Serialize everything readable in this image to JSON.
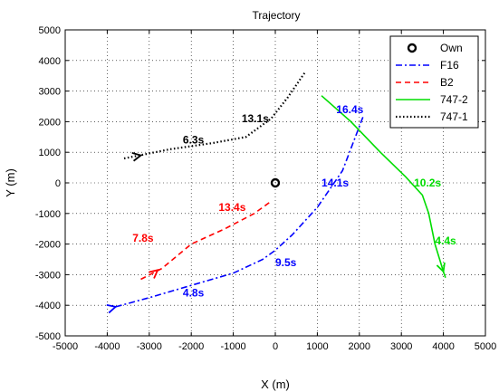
{
  "chart_data": {
    "type": "line",
    "title": "Trajectory",
    "xlabel": "X (m)",
    "ylabel": "Y (m)",
    "xlim": [
      -5000,
      5000
    ],
    "ylim": [
      -5000,
      5000
    ],
    "xticks": [
      -5000,
      -4000,
      -3000,
      -2000,
      -1000,
      0,
      1000,
      2000,
      3000,
      4000,
      5000
    ],
    "yticks": [
      -5000,
      -4000,
      -3000,
      -2000,
      -1000,
      0,
      1000,
      2000,
      3000,
      4000,
      5000
    ],
    "grid": true,
    "legend_position": "top-right",
    "own": {
      "name": "Own",
      "x": 0,
      "y": 0
    },
    "series": [
      {
        "name": "F16",
        "color": "#0000ff",
        "style": "dashdot",
        "x": [
          -3800,
          -3000,
          -2000,
          -1000,
          -300,
          0,
          400,
          1000,
          1600,
          2100
        ],
        "y": [
          -4050,
          -3750,
          -3350,
          -2950,
          -2500,
          -2200,
          -1700,
          -800,
          400,
          2200
        ],
        "arrow_at": [
          -3800,
          -4050
        ],
        "labels": [
          {
            "text": "4.8s",
            "x": -2200,
            "y": -3600
          },
          {
            "text": "9.5s",
            "x": 0,
            "y": -2600
          },
          {
            "text": "14.1s",
            "x": 1100,
            "y": 0
          },
          {
            "text": "16.4s",
            "x": 1450,
            "y": 2400
          }
        ]
      },
      {
        "name": "B2",
        "color": "#ff0000",
        "style": "dashed",
        "x": [
          -3200,
          -2700,
          -2000,
          -1200,
          -500,
          -100
        ],
        "y": [
          -3150,
          -2800,
          -2000,
          -1500,
          -1000,
          -600
        ],
        "arrow_at": [
          -2800,
          -2850
        ],
        "labels": [
          {
            "text": "7.8s",
            "x": -3400,
            "y": -1800
          },
          {
            "text": "13.4s",
            "x": -1350,
            "y": -800
          }
        ]
      },
      {
        "name": "747-2",
        "color": "#00dd00",
        "style": "solid",
        "x": [
          1100,
          1800,
          2500,
          3100,
          3500,
          3650,
          3800,
          4000,
          4050
        ],
        "y": [
          2850,
          2000,
          1000,
          200,
          -400,
          -1000,
          -2000,
          -2900,
          -3100
        ],
        "arrow_at": [
          4000,
          -2900
        ],
        "labels": [
          {
            "text": "10.2s",
            "x": 3300,
            "y": 0
          },
          {
            "text": "4.4s",
            "x": 3800,
            "y": -1900
          }
        ]
      },
      {
        "name": "747-1",
        "color": "#000000",
        "style": "dotted",
        "x": [
          -3600,
          -2500,
          -1500,
          -700,
          -100,
          300,
          700
        ],
        "y": [
          800,
          1100,
          1300,
          1500,
          2100,
          2800,
          3600
        ],
        "arrow_at": [
          -3200,
          900
        ],
        "labels": [
          {
            "text": "6.3s",
            "x": -2200,
            "y": 1400
          },
          {
            "text": "13.1s",
            "x": -800,
            "y": 2100
          }
        ]
      }
    ]
  }
}
